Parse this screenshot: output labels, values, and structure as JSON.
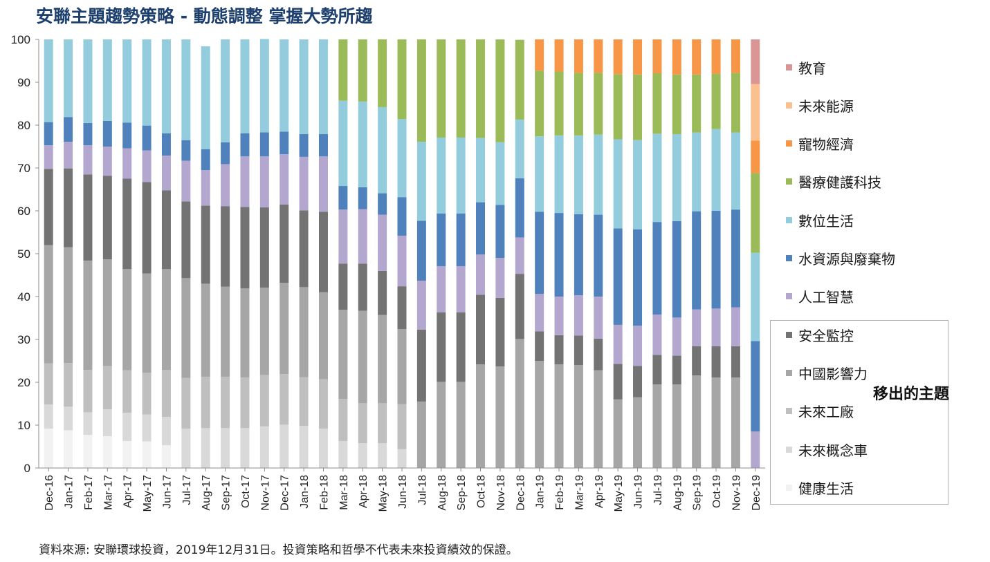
{
  "title": "安聯主題趨勢策略 - 動態調整  掌握大勢所趨",
  "source_note": "資料來源: 安聯環球投資，2019年12月31日。投資策略和哲學不代表未來投資績效的保證。",
  "moved_out_label": "移出的主題",
  "chart_data": {
    "type": "bar",
    "stacked": true,
    "ylim": [
      0,
      100
    ],
    "yticks": [
      0,
      10,
      20,
      30,
      40,
      50,
      60,
      70,
      80,
      90,
      100
    ],
    "grid": false,
    "categories": [
      "Dec-16",
      "Jan-17",
      "Feb-17",
      "Mar-17",
      "Apr-17",
      "May-17",
      "Jun-17",
      "Jul-17",
      "Aug-17",
      "Sep-17",
      "Oct-17",
      "Nov-17",
      "Dec-17",
      "Jan-18",
      "Feb-18",
      "Mar-18",
      "Apr-18",
      "May-18",
      "Jun-18",
      "Jul-18",
      "Aug-18",
      "Sep-18",
      "Oct-18",
      "Nov-18",
      "Dec-18",
      "Jan-19",
      "Feb-19",
      "Mar-19",
      "Apr-19",
      "May-19",
      "Jun-19",
      "Jul-19",
      "Aug-19",
      "Sep-19",
      "Oct-19",
      "Nov-19",
      "Dec-19"
    ],
    "series": [
      {
        "name": "健康生活",
        "color": "#f2f2f2",
        "values": [
          9.2,
          8.8,
          7.7,
          7.4,
          6.3,
          6.2,
          5.3,
          0,
          0,
          0,
          0,
          0,
          0,
          0,
          0,
          0,
          0,
          0,
          0,
          0,
          0,
          0,
          0,
          0,
          0,
          0,
          0,
          0,
          0,
          0,
          0,
          0,
          0,
          0,
          0,
          0,
          0
        ]
      },
      {
        "name": "未來概念車",
        "color": "#d9d9d9",
        "values": [
          5.6,
          5.5,
          5.3,
          6.3,
          6.6,
          6.3,
          6.6,
          9.2,
          9.3,
          9.3,
          9.3,
          9.7,
          10.1,
          9.8,
          9.2,
          6.3,
          5.8,
          5.8,
          4.4,
          0,
          0,
          0,
          0,
          0,
          0,
          0,
          0,
          0,
          0,
          0,
          0,
          0,
          0,
          0,
          0,
          0,
          0
        ]
      },
      {
        "name": "未來工廠",
        "color": "#bfbfbf",
        "values": [
          9.6,
          10.2,
          9.9,
          10.1,
          9.9,
          9.7,
          11.0,
          11.8,
          12.0,
          12.0,
          11.8,
          12.0,
          11.8,
          11.4,
          11.5,
          9.8,
          9.3,
          9.3,
          10.5,
          0,
          0,
          0,
          0,
          0,
          0,
          0,
          0,
          0,
          0,
          0,
          0,
          0,
          0,
          0,
          0,
          0,
          0
        ]
      },
      {
        "name": "中國影響力",
        "color": "#a6a6a6",
        "values": [
          27.6,
          27.0,
          25.5,
          24.9,
          23.6,
          23.2,
          23.5,
          23.3,
          21.7,
          21.0,
          20.8,
          20.4,
          21.3,
          21.0,
          20.3,
          20.8,
          21.6,
          20.6,
          17.5,
          15.5,
          20.1,
          20.1,
          24.2,
          23.7,
          30.1,
          25.0,
          24.2,
          24.0,
          22.8,
          16.0,
          16.5,
          19.5,
          19.5,
          21.6,
          21.1,
          21.1,
          0
        ]
      },
      {
        "name": "安全監控",
        "color": "#737373",
        "values": [
          17.8,
          18.4,
          20.1,
          19.5,
          21.1,
          21.3,
          18.4,
          17.9,
          18.2,
          18.8,
          19.0,
          18.7,
          18.3,
          17.9,
          18.8,
          10.8,
          11.0,
          10.3,
          10.0,
          16.8,
          16.2,
          16.2,
          16.2,
          16.0,
          15.2,
          6.9,
          6.8,
          6.9,
          7.4,
          8.3,
          7.3,
          6.9,
          6.7,
          6.8,
          7.3,
          7.3,
          0
        ]
      },
      {
        "name": "人工智慧",
        "color": "#b4a7cf",
        "values": [
          5.5,
          6.2,
          6.8,
          6.8,
          7.1,
          7.4,
          8.1,
          9.5,
          8.3,
          9.8,
          11.8,
          11.9,
          11.7,
          12.5,
          12.9,
          12.6,
          12.7,
          13.1,
          11.8,
          11.4,
          10.8,
          10.8,
          9.4,
          9.3,
          8.5,
          8.7,
          9.0,
          9.4,
          9.8,
          9.1,
          9.4,
          9.4,
          8.9,
          8.6,
          8.8,
          9.1,
          8.5
        ]
      },
      {
        "name": "水資源與廢棄物",
        "color": "#4f81bd",
        "values": [
          5.4,
          5.8,
          5.2,
          6.0,
          6.0,
          5.8,
          5.2,
          4.8,
          4.9,
          5.1,
          5.4,
          5.6,
          5.3,
          5.3,
          5.2,
          5.5,
          5.1,
          5.0,
          9.0,
          14.0,
          12.3,
          12.3,
          12.2,
          12.4,
          13.8,
          19.2,
          19.5,
          18.9,
          19.1,
          22.5,
          22.5,
          21.6,
          22.5,
          22.9,
          22.8,
          22.8,
          21.1
        ]
      },
      {
        "name": "數位生活",
        "color": "#93cddd",
        "values": [
          19.3,
          18.1,
          19.5,
          19.0,
          19.4,
          20.1,
          21.9,
          23.5,
          24.0,
          24.0,
          21.9,
          21.8,
          21.5,
          22.1,
          22.1,
          19.9,
          20.0,
          20.1,
          18.2,
          18.4,
          17.7,
          17.7,
          15.0,
          14.6,
          13.7,
          17.6,
          18.1,
          18.4,
          18.7,
          20.8,
          20.8,
          20.6,
          20.3,
          18.4,
          19.1,
          18.0,
          20.6
        ]
      },
      {
        "name": "醫療健護科技",
        "color": "#9bbb59",
        "values": [
          0,
          0,
          0,
          0,
          0,
          0,
          0,
          0,
          0,
          0,
          0,
          0,
          0,
          0,
          0,
          14.3,
          14.5,
          15.8,
          18.6,
          23.9,
          22.9,
          22.9,
          23.0,
          24.0,
          18.6,
          15.3,
          14.9,
          14.6,
          14.4,
          15.2,
          15.3,
          14.1,
          13.9,
          13.5,
          12.9,
          13.9,
          18.6
        ]
      },
      {
        "name": "寵物經濟",
        "color": "#f79646",
        "values": [
          0,
          0,
          0,
          0,
          0,
          0,
          0,
          0,
          0,
          0,
          0,
          0,
          0,
          0,
          0,
          0,
          0,
          0,
          0,
          0,
          0,
          0,
          0,
          0,
          0,
          7.3,
          7.5,
          7.8,
          7.8,
          8.1,
          8.2,
          7.9,
          8.2,
          8.2,
          8.0,
          7.8,
          7.6
        ]
      },
      {
        "name": "未來能源",
        "color": "#fac090",
        "values": [
          0,
          0,
          0,
          0,
          0,
          0,
          0,
          0,
          0,
          0,
          0,
          0,
          0,
          0,
          0,
          0,
          0,
          0,
          0,
          0,
          0,
          0,
          0,
          0,
          0,
          0,
          0,
          0,
          0,
          0,
          0,
          0,
          0,
          0,
          0,
          0,
          13.2
        ]
      },
      {
        "name": "教育",
        "color": "#d99694",
        "values": [
          0,
          0,
          0,
          0,
          0,
          0,
          0,
          0,
          0,
          0,
          0,
          0,
          0,
          0,
          0,
          0,
          0,
          0,
          0,
          0,
          0,
          0,
          0,
          0,
          0,
          0,
          0,
          0,
          0,
          0,
          0,
          0,
          0,
          0,
          0,
          0,
          10.4
        ]
      }
    ],
    "legend_order": [
      "教育",
      "未來能源",
      "寵物經濟",
      "醫療健護科技",
      "數位生活",
      "水資源與廢棄物",
      "人工智慧",
      "安全監控",
      "中國影響力",
      "未來工廠",
      "未來概念車",
      "健康生活"
    ],
    "legend_position": "right"
  }
}
